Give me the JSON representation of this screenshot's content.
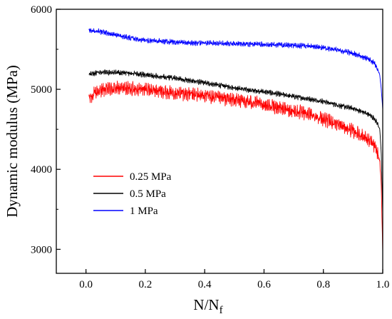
{
  "chart_data": {
    "type": "line",
    "title": "",
    "xlabel": "N/N",
    "xlabel_subscript": "f",
    "ylabel": "Dynamic modulus (MPa)",
    "xlim": [
      -0.1,
      1.0
    ],
    "ylim": [
      2700,
      6000
    ],
    "x_ticks": [
      0.0,
      0.2,
      0.4,
      0.6,
      0.8,
      1.0
    ],
    "x_tick_labels": [
      "0.0",
      "0.2",
      "0.4",
      "0.6",
      "0.8",
      "1.0"
    ],
    "y_ticks": [
      3000,
      4000,
      5000,
      6000
    ],
    "y_tick_labels": [
      "3000",
      "4000",
      "5000",
      "6000"
    ],
    "grid": false,
    "legend_position": "lower-left",
    "series": [
      {
        "name": "0.25 MPa",
        "color": "#ff0000",
        "x": [
          0.01,
          0.03,
          0.05,
          0.1,
          0.15,
          0.2,
          0.25,
          0.3,
          0.35,
          0.4,
          0.45,
          0.5,
          0.55,
          0.6,
          0.65,
          0.7,
          0.75,
          0.8,
          0.85,
          0.9,
          0.93,
          0.95,
          0.97,
          0.98,
          0.99,
          0.995,
          1.0
        ],
        "values": [
          4880,
          4950,
          4990,
          5010,
          5010,
          5000,
          4980,
          4960,
          4940,
          4920,
          4890,
          4870,
          4840,
          4810,
          4770,
          4730,
          4690,
          4630,
          4560,
          4480,
          4420,
          4370,
          4300,
          4230,
          4100,
          3800,
          2950
        ],
        "noise": 80
      },
      {
        "name": "0.5 MPa",
        "color": "#000000",
        "x": [
          0.01,
          0.05,
          0.1,
          0.15,
          0.2,
          0.25,
          0.3,
          0.35,
          0.4,
          0.45,
          0.5,
          0.55,
          0.6,
          0.65,
          0.7,
          0.75,
          0.8,
          0.85,
          0.9,
          0.93,
          0.95,
          0.97,
          0.98,
          0.99,
          0.995,
          1.0
        ],
        "values": [
          5190,
          5210,
          5210,
          5200,
          5180,
          5160,
          5140,
          5110,
          5080,
          5050,
          5020,
          4990,
          4970,
          4940,
          4910,
          4880,
          4850,
          4800,
          4760,
          4720,
          4690,
          4640,
          4590,
          4500,
          4200,
          3450
        ],
        "noise": 30
      },
      {
        "name": "1 MPa",
        "color": "#0000ff",
        "x": [
          0.01,
          0.05,
          0.1,
          0.15,
          0.2,
          0.25,
          0.3,
          0.35,
          0.4,
          0.45,
          0.5,
          0.55,
          0.6,
          0.65,
          0.7,
          0.75,
          0.8,
          0.85,
          0.9,
          0.93,
          0.95,
          0.97,
          0.98,
          0.99,
          0.995,
          1.0
        ],
        "values": [
          5740,
          5720,
          5680,
          5640,
          5610,
          5600,
          5590,
          5580,
          5580,
          5575,
          5570,
          5565,
          5560,
          5555,
          5550,
          5540,
          5520,
          5490,
          5450,
          5410,
          5380,
          5330,
          5280,
          5180,
          5000,
          4750
        ],
        "noise": 30
      }
    ]
  }
}
